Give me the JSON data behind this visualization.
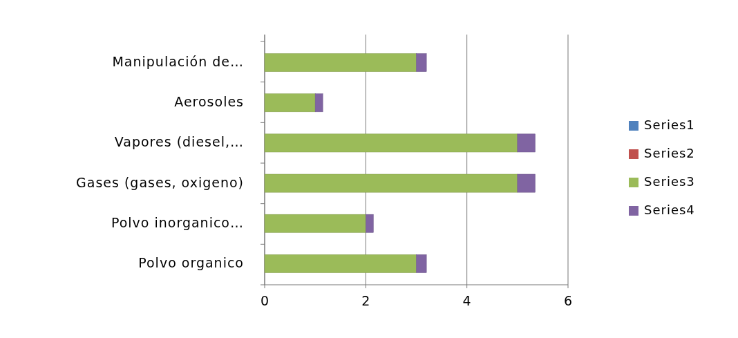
{
  "chart_data": {
    "type": "bar",
    "orientation": "horizontal",
    "stacked": true,
    "categories": [
      "Manipulación de…",
      "Aerosoles",
      "Vapores (diesel,…",
      "Gases (gases, oxigeno)",
      "Polvo inorganico…",
      "Polvo organico"
    ],
    "series": [
      {
        "name": "Series1",
        "color": "#4f81bd",
        "values": [
          0,
          0,
          0,
          0,
          0,
          0
        ]
      },
      {
        "name": "Series2",
        "color": "#c0504d",
        "values": [
          0,
          0,
          0,
          0,
          0,
          0
        ]
      },
      {
        "name": "Series3",
        "color": "#9bbb59",
        "values": [
          3,
          1,
          5,
          5,
          2,
          3
        ]
      },
      {
        "name": "Series4",
        "color": "#8064a2",
        "values": [
          0.2,
          0.15,
          0.35,
          0.35,
          0.15,
          0.2
        ]
      }
    ],
    "xlim": [
      0,
      6
    ],
    "xticks": [
      0,
      2,
      4,
      6
    ],
    "grid": "x",
    "legend": "right"
  }
}
